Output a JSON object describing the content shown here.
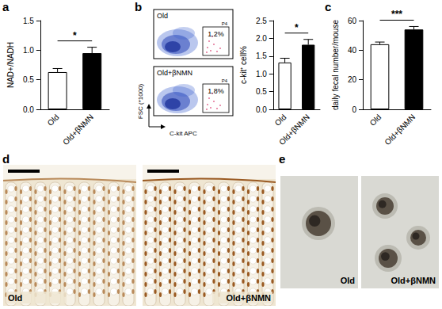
{
  "chart_data": [
    {
      "type": "bar",
      "y_label": "NAD+/NADH",
      "categories": [
        "Old",
        "Old+βNMN"
      ],
      "values": [
        0.63,
        0.95
      ],
      "errors": [
        0.06,
        0.1
      ],
      "colors": [
        "#ffffff",
        "#000000"
      ],
      "ylim": [
        0,
        1.5
      ],
      "yticks": [
        {
          "value": 0,
          "label": "0.0"
        },
        {
          "value": 0.5,
          "label": "0.5"
        },
        {
          "value": 1,
          "label": "1.0"
        },
        {
          "value": 1.5,
          "label": "1.5"
        }
      ],
      "annotations": [
        "*"
      ],
      "grid": false
    },
    {
      "type": "bar",
      "y_label": "c-kit⁺ cell%",
      "categories": [
        "Old",
        "Old+βNMN"
      ],
      "values": [
        1.32,
        1.82
      ],
      "errors": [
        0.12,
        0.15
      ],
      "colors": [
        "#ffffff",
        "#000000"
      ],
      "ylim": [
        0,
        2.5
      ],
      "yticks": [
        {
          "value": 0,
          "label": "0.0"
        },
        {
          "value": 0.5,
          "label": "0.5"
        },
        {
          "value": 1,
          "label": "1.0"
        },
        {
          "value": 1.5,
          "label": "1.5"
        },
        {
          "value": 2,
          "label": "2.0"
        },
        {
          "value": 2.5,
          "label": "2.5"
        }
      ],
      "annotations": [
        "*"
      ],
      "grid": false
    },
    {
      "type": "bar",
      "y_label": "daily fecal number/mouse",
      "categories": [
        "Old",
        "Old+βNMN"
      ],
      "values": [
        44,
        54
      ],
      "errors": [
        1.5,
        2
      ],
      "colors": [
        "#ffffff",
        "#000000"
      ],
      "ylim": [
        0,
        60
      ],
      "yticks": [
        0,
        20,
        40,
        60
      ],
      "annotations": [
        "***"
      ],
      "grid": false
    }
  ],
  "figure": {
    "panel_labels": [
      "a",
      "b",
      "c",
      "d",
      "e"
    ],
    "flow_cytometry": {
      "x_label": "C-kit APC",
      "y_label": "FSC (*1000)",
      "plots": [
        {
          "label": "Old",
          "gate_name": "P4",
          "gate_label": "1.2%"
        },
        {
          "label": "Old+βNMN",
          "gate_name": "P4",
          "gate_label": "1.8%"
        }
      ]
    },
    "histology": {
      "images": [
        {
          "label": "Old"
        },
        {
          "label": "Old+βNMN"
        }
      ]
    },
    "organoids": {
      "images": [
        {
          "label": "Old"
        },
        {
          "label": "Old+βNMN"
        }
      ]
    }
  }
}
